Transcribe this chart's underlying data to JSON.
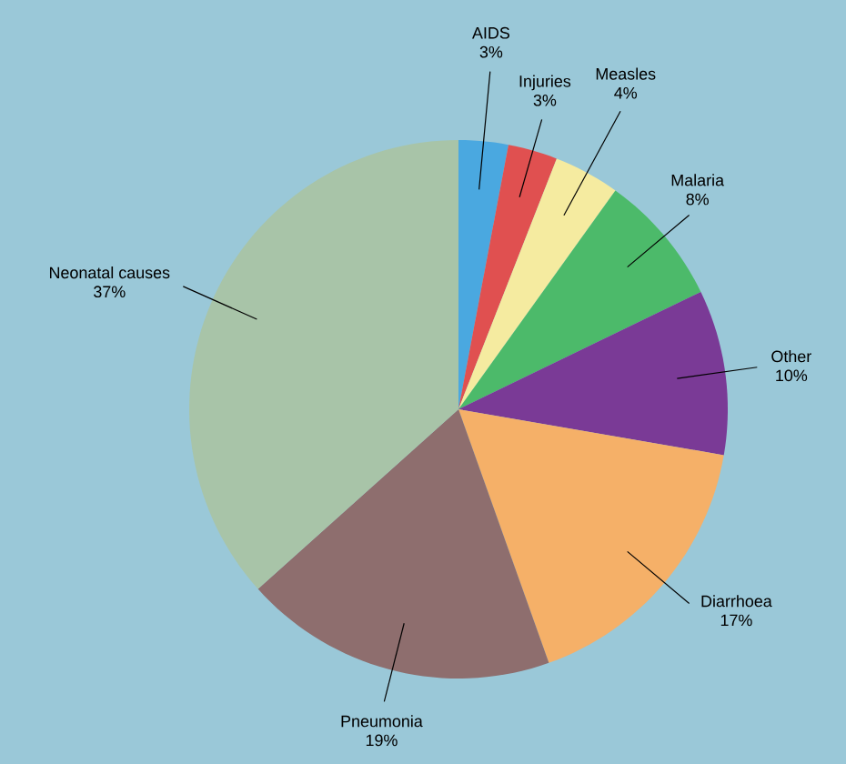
{
  "chart_data": {
    "type": "pie",
    "categories": [
      "AIDS",
      "Injuries",
      "Measles",
      "Malaria",
      "Other",
      "Diarrhoea",
      "Pneumonia",
      "Neonatal causes"
    ],
    "values": [
      3,
      3,
      4,
      8,
      10,
      17,
      19,
      37
    ],
    "value_labels": [
      "3%",
      "3%",
      "4%",
      "8%",
      "10%",
      "17%",
      "19%",
      "37%"
    ],
    "colors": [
      "#4aa8e0",
      "#e05050",
      "#f5eba0",
      "#4cba6a",
      "#7a3a96",
      "#f5b068",
      "#8e6e6e",
      "#a8c4a8"
    ]
  }
}
